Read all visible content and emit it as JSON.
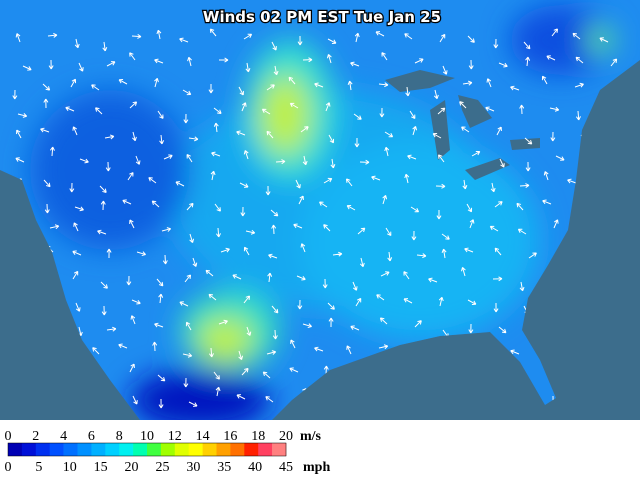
{
  "header": {
    "title": "Winds 02 PM EST Tue Jan 25"
  },
  "scale": {
    "colors": [
      "#0000b4",
      "#0010d8",
      "#0030f0",
      "#0050ff",
      "#0070ff",
      "#0090ff",
      "#00b0ff",
      "#00d0ff",
      "#00f0f0",
      "#00ffb0",
      "#40ff40",
      "#a0ff00",
      "#e0ff00",
      "#ffff00",
      "#ffd000",
      "#ffa000",
      "#ff7000",
      "#ff2000",
      "#ff4060",
      "#ff8080"
    ],
    "ms_unit": "m/s",
    "ms_labels": [
      "0",
      "2",
      "4",
      "6",
      "8",
      "10",
      "12",
      "14",
      "16",
      "18",
      "20"
    ],
    "mph_unit": "mph",
    "mph_labels": [
      "0",
      "5",
      "10",
      "15",
      "20",
      "25",
      "30",
      "35",
      "40",
      "45"
    ]
  }
}
